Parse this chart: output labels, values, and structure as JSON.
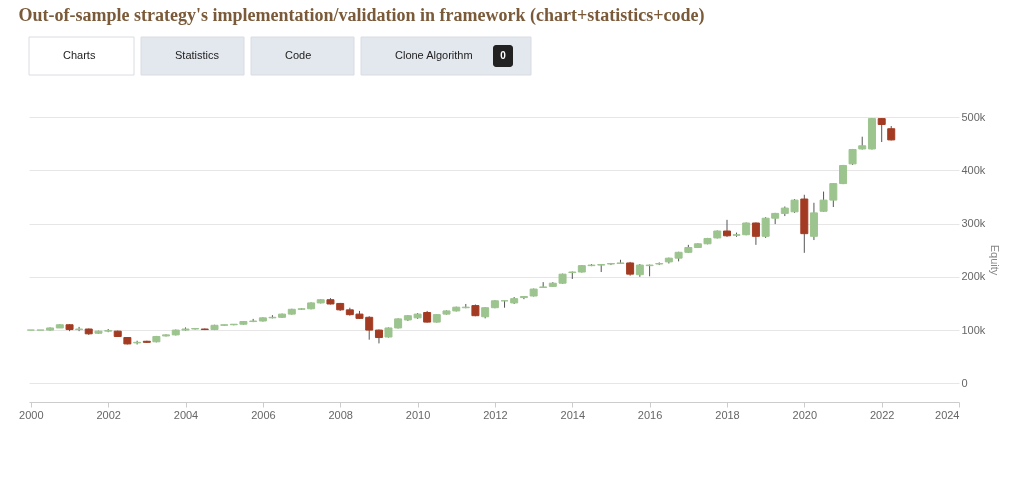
{
  "chart_data": {
    "type": "candlestick",
    "title": "Out-of-sample strategy's implementation/validation in framework (chart+statistics+code)",
    "annotations": [
      "Charts",
      "Statistics",
      "Code",
      "Clone Algorithm",
      "0"
    ],
    "ylabel": "Equity",
    "x": [
      "2000-01",
      "2000-04",
      "2000-07",
      "2000-10",
      "2001-01",
      "2001-04",
      "2001-07",
      "2001-10",
      "2002-01",
      "2002-04",
      "2002-07",
      "2002-10",
      "2003-01",
      "2003-04",
      "2003-07",
      "2003-10",
      "2004-01",
      "2004-04",
      "2004-07",
      "2004-10",
      "2005-01",
      "2005-04",
      "2005-07",
      "2005-10",
      "2006-01",
      "2006-04",
      "2006-07",
      "2006-10",
      "2007-01",
      "2007-04",
      "2007-07",
      "2007-10",
      "2008-01",
      "2008-04",
      "2008-07",
      "2008-10",
      "2009-01",
      "2009-04",
      "2009-07",
      "2009-10",
      "2010-01",
      "2010-04",
      "2010-07",
      "2010-10",
      "2011-01",
      "2011-04",
      "2011-07",
      "2011-10",
      "2012-01",
      "2012-04",
      "2012-07",
      "2012-10",
      "2013-01",
      "2013-04",
      "2013-07",
      "2013-10",
      "2014-01",
      "2014-04",
      "2014-07",
      "2014-10",
      "2015-01",
      "2015-04",
      "2015-07",
      "2015-10",
      "2016-01",
      "2016-04",
      "2016-07",
      "2016-10",
      "2017-01",
      "2017-04",
      "2017-07",
      "2017-10",
      "2018-01",
      "2018-04",
      "2018-07",
      "2018-10",
      "2019-01",
      "2019-04",
      "2019-07",
      "2019-10",
      "2020-01",
      "2020-04",
      "2020-07",
      "2020-10",
      "2021-01",
      "2021-04",
      "2021-07",
      "2021-10",
      "2022-01",
      "2022-04"
    ],
    "ohlc": [
      [
        100,
        100,
        100,
        100
      ],
      [
        100,
        100,
        100,
        100
      ],
      [
        100,
        105,
        99,
        104
      ],
      [
        104,
        111,
        104,
        110
      ],
      [
        110,
        111,
        98,
        101
      ],
      [
        101,
        106,
        98,
        102
      ],
      [
        102,
        103,
        91,
        93
      ],
      [
        94,
        99,
        93,
        98
      ],
      [
        98,
        102,
        96,
        99
      ],
      [
        98,
        99,
        87,
        88
      ],
      [
        86,
        86,
        73,
        74
      ],
      [
        76,
        80,
        73,
        77
      ],
      [
        79,
        80,
        76,
        77
      ],
      [
        78,
        89,
        77,
        88
      ],
      [
        89,
        92,
        88,
        91
      ],
      [
        91,
        101,
        90,
        100
      ],
      [
        100,
        105,
        99,
        102
      ],
      [
        102,
        104,
        101,
        103
      ],
      [
        102,
        103,
        100,
        101
      ],
      [
        101,
        110,
        100,
        109
      ],
      [
        109,
        110,
        108,
        110
      ],
      [
        110,
        111,
        109,
        111
      ],
      [
        111,
        117,
        110,
        116
      ],
      [
        116,
        121,
        115,
        117
      ],
      [
        117,
        124,
        116,
        123
      ],
      [
        123,
        128,
        122,
        124
      ],
      [
        124,
        131,
        123,
        130
      ],
      [
        130,
        140,
        129,
        139
      ],
      [
        139,
        141,
        138,
        140
      ],
      [
        140,
        152,
        139,
        151
      ],
      [
        151,
        158,
        150,
        157
      ],
      [
        157,
        160,
        148,
        149
      ],
      [
        150,
        151,
        136,
        138
      ],
      [
        138,
        142,
        127,
        129
      ],
      [
        130,
        136,
        121,
        122
      ],
      [
        124,
        126,
        82,
        100
      ],
      [
        100,
        101,
        75,
        86
      ],
      [
        87,
        105,
        86,
        104
      ],
      [
        104,
        122,
        103,
        121
      ],
      [
        119,
        128,
        117,
        127
      ],
      [
        123,
        132,
        121,
        130
      ],
      [
        133,
        136,
        114,
        115
      ],
      [
        115,
        130,
        114,
        129
      ],
      [
        130,
        137,
        129,
        136
      ],
      [
        136,
        144,
        135,
        143
      ],
      [
        142,
        149,
        141,
        143
      ],
      [
        146,
        148,
        126,
        127
      ],
      [
        125,
        143,
        122,
        142
      ],
      [
        142,
        156,
        141,
        155
      ],
      [
        155,
        156,
        142,
        155
      ],
      [
        151,
        162,
        149,
        159
      ],
      [
        161,
        164,
        158,
        163
      ],
      [
        164,
        178,
        163,
        177
      ],
      [
        180,
        190,
        179,
        181
      ],
      [
        182,
        190,
        181,
        188
      ],
      [
        188,
        206,
        187,
        205
      ],
      [
        208,
        210,
        196,
        209
      ],
      [
        209,
        222,
        208,
        221
      ],
      [
        221,
        224,
        220,
        222
      ],
      [
        222,
        224,
        209,
        223
      ],
      [
        224,
        226,
        222,
        225
      ],
      [
        225,
        232,
        224,
        226
      ],
      [
        226,
        228,
        202,
        205
      ],
      [
        204,
        224,
        200,
        222
      ],
      [
        221,
        223,
        201,
        222
      ],
      [
        224,
        227,
        222,
        225
      ],
      [
        228,
        236,
        225,
        235
      ],
      [
        235,
        247,
        229,
        246
      ],
      [
        246,
        260,
        245,
        255
      ],
      [
        255,
        263,
        254,
        262
      ],
      [
        262,
        273,
        261,
        272
      ],
      [
        273,
        287,
        272,
        286
      ],
      [
        286,
        307,
        275,
        277
      ],
      [
        278,
        283,
        275,
        279
      ],
      [
        279,
        302,
        278,
        301
      ],
      [
        301,
        302,
        260,
        276
      ],
      [
        276,
        312,
        273,
        310
      ],
      [
        310,
        320,
        299,
        319
      ],
      [
        319,
        332,
        314,
        329
      ],
      [
        322,
        346,
        320,
        344
      ],
      [
        346,
        354,
        245,
        281
      ],
      [
        276,
        339,
        269,
        320
      ],
      [
        323,
        360,
        322,
        344
      ],
      [
        344,
        376,
        331,
        375
      ],
      [
        375,
        410,
        374,
        409
      ],
      [
        412,
        440,
        410,
        439
      ],
      [
        440,
        463,
        439,
        446
      ],
      [
        440,
        498,
        439,
        497
      ],
      [
        497,
        498,
        453,
        486
      ],
      [
        478,
        483,
        456,
        457
      ]
    ],
    "colors": [
      "#9cc48e",
      "#9cc48e",
      "#9cc48e",
      "#9cc48e",
      "#a33b22",
      "#9cc48e",
      "#a33b22",
      "#9cc48e",
      "#9cc48e",
      "#a33b22",
      "#a33b22",
      "#9cc48e",
      "#a33b22",
      "#9cc48e",
      "#9cc48e",
      "#9cc48e",
      "#9cc48e",
      "#9cc48e",
      "#a33b22",
      "#9cc48e",
      "#9cc48e",
      "#9cc48e",
      "#9cc48e",
      "#9cc48e",
      "#9cc48e",
      "#9cc48e",
      "#9cc48e",
      "#9cc48e",
      "#9cc48e",
      "#9cc48e",
      "#9cc48e",
      "#a33b22",
      "#a33b22",
      "#a33b22",
      "#a33b22",
      "#a33b22",
      "#a33b22",
      "#9cc48e",
      "#9cc48e",
      "#9cc48e",
      "#9cc48e",
      "#a33b22",
      "#9cc48e",
      "#9cc48e",
      "#9cc48e",
      "#9cc48e",
      "#a33b22",
      "#9cc48e",
      "#9cc48e",
      "#9cc48e",
      "#9cc48e",
      "#9cc48e",
      "#9cc48e",
      "#9cc48e",
      "#9cc48e",
      "#9cc48e",
      "#9cc48e",
      "#9cc48e",
      "#9cc48e",
      "#9cc48e",
      "#9cc48e",
      "#9cc48e",
      "#a33b22",
      "#9cc48e",
      "#9cc48e",
      "#9cc48e",
      "#9cc48e",
      "#9cc48e",
      "#9cc48e",
      "#9cc48e",
      "#9cc48e",
      "#9cc48e",
      "#a33b22",
      "#9cc48e",
      "#9cc48e",
      "#a33b22",
      "#9cc48e",
      "#9cc48e",
      "#9cc48e",
      "#9cc48e",
      "#a33b22",
      "#9cc48e",
      "#9cc48e",
      "#9cc48e",
      "#9cc48e",
      "#9cc48e",
      "#9cc48e",
      "#9cc48e",
      "#a33b22",
      "#a33b22"
    ],
    "xlim": [
      "1999-12-15",
      "2024-01-01"
    ],
    "xticks": [
      "2000",
      "2002",
      "2004",
      "2006",
      "2008",
      "2010",
      "2012",
      "2014",
      "2016",
      "2018",
      "2020",
      "2022",
      "2024"
    ],
    "ylim": [
      -35,
      500
    ],
    "yticks": [
      0,
      {
        "value": 100,
        "label": "100k"
      },
      {
        "value": 200,
        "label": "200k"
      },
      {
        "value": 300,
        "label": "300k"
      },
      {
        "value": 400,
        "label": "400k"
      },
      {
        "value": 500,
        "label": "500k"
      }
    ],
    "grid": "y"
  }
}
